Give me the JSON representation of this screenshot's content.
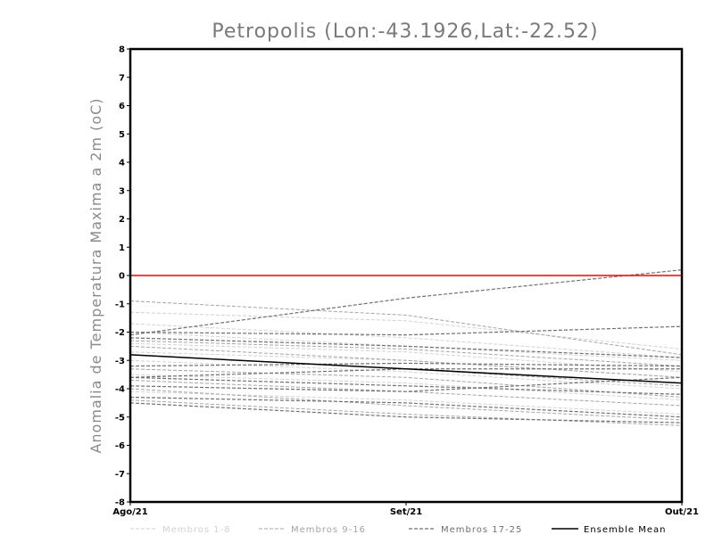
{
  "chart_data": {
    "type": "line",
    "title": "Petropolis (Lon:-43.1926,Lat:-22.52)",
    "ylabel": "Anomalia de Temperatura Maxima a 2m (oC)",
    "xlabel": "",
    "categories": [
      "Ago/21",
      "Set/21",
      "Out/21"
    ],
    "ylim": [
      -8,
      8
    ],
    "yticks": [
      "8",
      "7",
      "6",
      "5",
      "4",
      "3",
      "2",
      "1",
      "0",
      "-1",
      "-2",
      "-3",
      "-4",
      "-5",
      "-6",
      "-7",
      "-8"
    ],
    "reference_line": {
      "value": 0,
      "color": "#ff0000"
    },
    "series": [
      {
        "name": "Membros 1-8",
        "group": "g1",
        "values": [
          -1.3,
          -1.6,
          -2.6
        ]
      },
      {
        "name": "Membros 1-8",
        "group": "g1",
        "values": [
          -1.7,
          -2.2,
          -2.9
        ]
      },
      {
        "name": "Membros 1-8",
        "group": "g1",
        "values": [
          -2.0,
          -2.5,
          -3.0
        ]
      },
      {
        "name": "Membros 1-8",
        "group": "g1",
        "values": [
          -2.4,
          -2.7,
          -3.4
        ]
      },
      {
        "name": "Membros 1-8",
        "group": "g1",
        "values": [
          -2.7,
          -3.0,
          -3.6
        ]
      },
      {
        "name": "Membros 1-8",
        "group": "g1",
        "values": [
          -3.0,
          -3.4,
          -4.0
        ]
      },
      {
        "name": "Membros 1-8",
        "group": "g1",
        "values": [
          -3.5,
          -3.8,
          -4.4
        ]
      },
      {
        "name": "Membros 1-8",
        "group": "g1",
        "values": [
          -4.1,
          -4.4,
          -4.9
        ]
      },
      {
        "name": "Membros 9-16",
        "group": "g2",
        "values": [
          -0.9,
          -1.4,
          -2.8
        ]
      },
      {
        "name": "Membros 9-16",
        "group": "g2",
        "values": [
          -2.3,
          -2.6,
          -3.2
        ]
      },
      {
        "name": "Membros 9-16",
        "group": "g2",
        "values": [
          -2.5,
          -3.0,
          -3.6
        ]
      },
      {
        "name": "Membros 9-16",
        "group": "g2",
        "values": [
          -2.8,
          -3.3,
          -3.9
        ]
      },
      {
        "name": "Membros 9-16",
        "group": "g2",
        "values": [
          -3.3,
          -3.6,
          -4.3
        ]
      },
      {
        "name": "Membros 9-16",
        "group": "g2",
        "values": [
          -3.7,
          -4.1,
          -4.6
        ]
      },
      {
        "name": "Membros 9-16",
        "group": "g2",
        "values": [
          -4.0,
          -4.6,
          -5.1
        ]
      },
      {
        "name": "Membros 9-16",
        "group": "g2",
        "values": [
          -4.4,
          -4.9,
          -5.3
        ]
      },
      {
        "name": "Membros 17-25",
        "group": "g3",
        "values": [
          -2.1,
          -0.8,
          0.2
        ]
      },
      {
        "name": "Membros 17-25",
        "group": "g3",
        "values": [
          -2.0,
          -2.1,
          -1.8
        ]
      },
      {
        "name": "Membros 17-25",
        "group": "g3",
        "values": [
          -2.2,
          -2.5,
          -2.9
        ]
      },
      {
        "name": "Membros 17-25",
        "group": "g3",
        "values": [
          -3.2,
          -3.1,
          -3.2
        ]
      },
      {
        "name": "Membros 17-25",
        "group": "g3",
        "values": [
          -3.6,
          -3.3,
          -3.3
        ]
      },
      {
        "name": "Membros 17-25",
        "group": "g3",
        "values": [
          -3.6,
          -3.9,
          -4.2
        ]
      },
      {
        "name": "Membros 17-25",
        "group": "g3",
        "values": [
          -3.9,
          -4.1,
          -3.6
        ]
      },
      {
        "name": "Membros 17-25",
        "group": "g3",
        "values": [
          -4.3,
          -4.5,
          -5.0
        ]
      },
      {
        "name": "Membros 17-25",
        "group": "g3",
        "values": [
          -4.5,
          -5.0,
          -5.2
        ]
      },
      {
        "name": "Ensemble Mean",
        "group": "mean",
        "values": [
          -2.8,
          -3.3,
          -3.8
        ]
      }
    ],
    "legend": [
      {
        "label": "Membros 1-8",
        "group": "g1"
      },
      {
        "label": "Membros 9-16",
        "group": "g2"
      },
      {
        "label": "Membros 17-25",
        "group": "g3"
      },
      {
        "label": "Ensemble Mean",
        "group": "mean"
      }
    ],
    "colors": {
      "g1": "#d2d2d2",
      "g2": "#a4a4a4",
      "g3": "#707070",
      "mean": "#000000",
      "zero": "#ff0000"
    },
    "legend_position": "bottom"
  }
}
